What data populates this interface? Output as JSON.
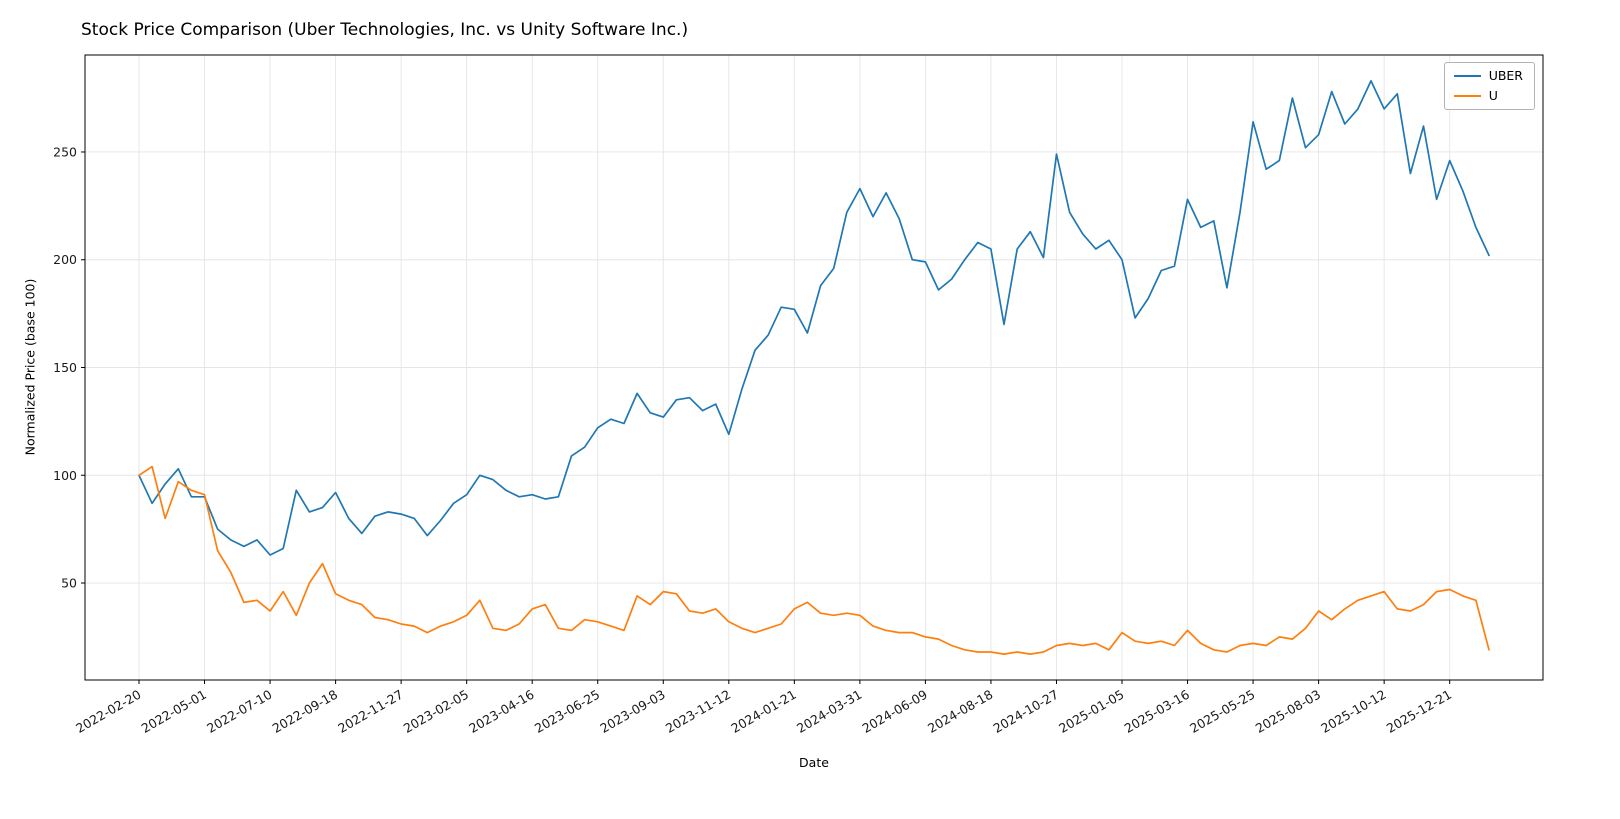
{
  "chart_data": {
    "type": "line",
    "title": "Stock Price Comparison (Uber Technologies, Inc. vs Unity Software Inc.)",
    "xlabel": "Date",
    "ylabel": "Normalized Price (base 100)",
    "ylim": [
      5,
      295
    ],
    "yticks": [
      50,
      100,
      150,
      200,
      250
    ],
    "xticks": [
      "2022-02-20",
      "2022-05-01",
      "2022-07-10",
      "2022-09-18",
      "2022-11-27",
      "2023-02-05",
      "2023-04-16",
      "2023-06-25",
      "2023-09-03",
      "2023-11-12",
      "2024-01-21",
      "2024-03-31",
      "2024-06-09",
      "2024-08-18",
      "2024-10-27",
      "2025-01-05",
      "2025-03-16",
      "2025-05-25",
      "2025-08-03",
      "2025-10-12",
      "2025-12-21"
    ],
    "grid": true,
    "legend_position": "upper right",
    "colors": {
      "UBER": "#1f77b4",
      "U": "#ff7f0e"
    },
    "x": [
      "2022-02-20",
      "2022-03-06",
      "2022-03-20",
      "2022-04-03",
      "2022-04-17",
      "2022-05-01",
      "2022-05-15",
      "2022-05-29",
      "2022-06-12",
      "2022-06-26",
      "2022-07-10",
      "2022-07-24",
      "2022-08-07",
      "2022-08-21",
      "2022-09-04",
      "2022-09-18",
      "2022-10-02",
      "2022-10-16",
      "2022-10-30",
      "2022-11-13",
      "2022-11-27",
      "2022-12-11",
      "2022-12-25",
      "2023-01-08",
      "2023-01-22",
      "2023-02-05",
      "2023-02-19",
      "2023-03-05",
      "2023-03-19",
      "2023-04-02",
      "2023-04-16",
      "2023-04-30",
      "2023-05-14",
      "2023-05-28",
      "2023-06-11",
      "2023-06-25",
      "2023-07-09",
      "2023-07-23",
      "2023-08-06",
      "2023-08-20",
      "2023-09-03",
      "2023-09-17",
      "2023-10-01",
      "2023-10-15",
      "2023-10-29",
      "2023-11-12",
      "2023-11-26",
      "2023-12-10",
      "2023-12-24",
      "2024-01-07",
      "2024-01-21",
      "2024-02-04",
      "2024-02-18",
      "2024-03-03",
      "2024-03-17",
      "2024-03-31",
      "2024-04-14",
      "2024-04-28",
      "2024-05-12",
      "2024-05-26",
      "2024-06-09",
      "2024-06-23",
      "2024-07-07",
      "2024-07-21",
      "2024-08-04",
      "2024-08-18",
      "2024-09-01",
      "2024-09-15",
      "2024-09-29",
      "2024-10-13",
      "2024-10-27",
      "2024-11-10",
      "2024-11-24",
      "2024-12-08",
      "2024-12-22",
      "2025-01-05",
      "2025-01-19",
      "2025-02-02",
      "2025-02-16",
      "2025-03-02",
      "2025-03-16",
      "2025-03-30",
      "2025-04-13",
      "2025-04-27",
      "2025-05-11",
      "2025-05-25",
      "2025-06-08",
      "2025-06-22",
      "2025-07-06",
      "2025-07-20",
      "2025-08-03",
      "2025-08-17",
      "2025-08-31",
      "2025-09-14",
      "2025-09-28",
      "2025-10-12",
      "2025-10-26",
      "2025-11-09",
      "2025-11-23",
      "2025-12-07",
      "2025-12-21",
      "2026-01-04",
      "2026-01-18",
      "2026-02-01"
    ],
    "series": [
      {
        "name": "UBER",
        "color": "#1f77b4",
        "values": [
          100,
          87,
          96,
          103,
          90,
          90,
          75,
          70,
          67,
          70,
          63,
          66,
          93,
          83,
          85,
          92,
          80,
          73,
          81,
          83,
          82,
          80,
          72,
          79,
          87,
          91,
          100,
          98,
          93,
          90,
          91,
          89,
          90,
          109,
          113,
          122,
          126,
          124,
          138,
          129,
          127,
          135,
          136,
          130,
          133,
          119,
          140,
          158,
          165,
          178,
          177,
          166,
          188,
          196,
          222,
          233,
          220,
          231,
          219,
          200,
          199,
          186,
          191,
          200,
          208,
          205,
          170,
          205,
          213,
          201,
          249,
          222,
          212,
          205,
          209,
          200,
          173,
          182,
          195,
          197,
          228,
          215,
          218,
          187,
          222,
          264,
          242,
          246,
          275,
          252,
          258,
          278,
          263,
          270,
          283,
          270,
          277,
          240,
          262,
          228,
          246,
          232,
          215,
          202
        ]
      },
      {
        "name": "U",
        "color": "#ff7f0e",
        "values": [
          100,
          104,
          80,
          97,
          93,
          91,
          65,
          55,
          41,
          42,
          37,
          46,
          35,
          50,
          59,
          45,
          42,
          40,
          34,
          33,
          31,
          30,
          27,
          30,
          32,
          35,
          42,
          29,
          28,
          31,
          38,
          40,
          29,
          28,
          33,
          32,
          30,
          28,
          44,
          40,
          46,
          45,
          37,
          36,
          38,
          32,
          29,
          27,
          29,
          31,
          38,
          41,
          36,
          35,
          36,
          35,
          30,
          28,
          27,
          27,
          25,
          24,
          21,
          19,
          18,
          18,
          17,
          18,
          17,
          18,
          21,
          22,
          21,
          22,
          19,
          27,
          23,
          22,
          23,
          21,
          28,
          22,
          19,
          18,
          21,
          22,
          21,
          25,
          24,
          29,
          37,
          33,
          38,
          42,
          44,
          46,
          38,
          37,
          40,
          46,
          47,
          44,
          42,
          19
        ]
      }
    ]
  }
}
